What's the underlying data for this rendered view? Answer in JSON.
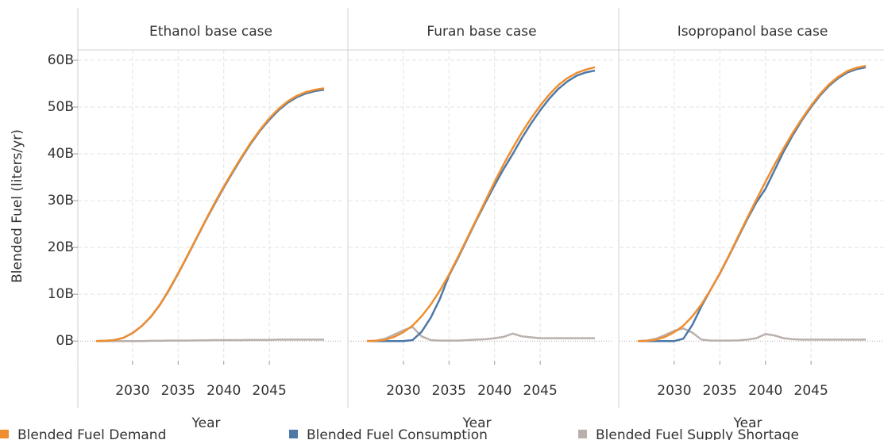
{
  "chart_data": {
    "type": "line",
    "ylabel": "Blended Fuel (liters/yr)",
    "xlabel": "Year",
    "x": [
      2026,
      2027,
      2028,
      2029,
      2030,
      2031,
      2032,
      2033,
      2034,
      2035,
      2036,
      2037,
      2038,
      2039,
      2040,
      2041,
      2042,
      2043,
      2044,
      2045,
      2046,
      2047,
      2048,
      2049,
      2050,
      2051
    ],
    "xlim": [
      2024,
      2053
    ],
    "xticks": [
      2030,
      2035,
      2040,
      2045
    ],
    "ylim": [
      -4200000000.0,
      62200000000.0
    ],
    "yticks": [
      {
        "value": 0,
        "label": "0B"
      },
      {
        "value": 10000000000.0,
        "label": "10B"
      },
      {
        "value": 20000000000.0,
        "label": "20B"
      },
      {
        "value": 30000000000.0,
        "label": "30B"
      },
      {
        "value": 40000000000.0,
        "label": "40B"
      },
      {
        "value": 50000000000.0,
        "label": "50B"
      },
      {
        "value": 60000000000.0,
        "label": "60B"
      }
    ],
    "grid": true,
    "legend": "bottom",
    "series": [
      {
        "name": "Blended Fuel Demand",
        "color": "#ef8e2f"
      },
      {
        "name": "Blended Fuel Consumption",
        "color": "#4e79a7"
      },
      {
        "name": "Blended Fuel Supply Shortage",
        "color": "#bab0ac"
      }
    ],
    "panels": [
      {
        "title": "Ethanol base case",
        "series": [
          {
            "values": [
              0,
              50000000.0,
              200000000.0,
              700000000.0,
              1700000000.0,
              3200000000.0,
              5200000000.0,
              7800000000.0,
              11000000000.0,
              14500000000.0,
              18200000000.0,
              22000000000.0,
              25800000000.0,
              29500000000.0,
              33000000000.0,
              36300000000.0,
              39500000000.0,
              42500000000.0,
              45200000000.0,
              47600000000.0,
              49600000000.0,
              51200000000.0,
              52400000000.0,
              53200000000.0,
              53700000000.0,
              54000000000.0
            ]
          },
          {
            "values": [
              0,
              50000000.0,
              200000000.0,
              700000000.0,
              1700000000.0,
              3200000000.0,
              5150000000.0,
              7750000000.0,
              10900000000.0,
              14400000000.0,
              18100000000.0,
              21900000000.0,
              25700000000.0,
              29300000000.0,
              32800000000.0,
              36100000000.0,
              39300000000.0,
              42300000000.0,
              45000000000.0,
              47300000000.0,
              49300000000.0,
              50900000000.0,
              52100000000.0,
              52900000000.0,
              53400000000.0,
              53700000000.0
            ]
          },
          {
            "values": [
              0,
              0,
              0,
              0,
              0,
              0,
              50000000.0,
              50000000.0,
              100000000.0,
              100000000.0,
              100000000.0,
              150000000.0,
              150000000.0,
              200000000.0,
              200000000.0,
              200000000.0,
              200000000.0,
              250000000.0,
              250000000.0,
              250000000.0,
              300000000.0,
              300000000.0,
              300000000.0,
              300000000.0,
              300000000.0,
              300000000.0
            ]
          }
        ]
      },
      {
        "title": "Furan base case",
        "series": [
          {
            "values": [
              0,
              50000000.0,
              300000000.0,
              900000000.0,
              1900000000.0,
              3300000000.0,
              5300000000.0,
              7800000000.0,
              10800000000.0,
              14200000000.0,
              18000000000.0,
              22000000000.0,
              26000000000.0,
              30000000000.0,
              34000000000.0,
              37800000000.0,
              41300000000.0,
              44600000000.0,
              47600000000.0,
              50300000000.0,
              52700000000.0,
              54700000000.0,
              56200000000.0,
              57300000000.0,
              58000000000.0,
              58500000000.0
            ]
          },
          {
            "values": [
              0,
              0,
              0,
              0,
              0,
              200000000.0,
              2000000000.0,
              5000000000.0,
              9000000000.0,
              14000000000.0,
              17800000000.0,
              21800000000.0,
              25800000000.0,
              29600000000.0,
              33300000000.0,
              36800000000.0,
              40000000000.0,
              43400000000.0,
              46500000000.0,
              49300000000.0,
              51800000000.0,
              53900000000.0,
              55500000000.0,
              56700000000.0,
              57400000000.0,
              57800000000.0
            ]
          },
          {
            "values": [
              0,
              100000000.0,
              500000000.0,
              1400000000.0,
              2300000000.0,
              3000000000.0,
              1000000000.0,
              200000000.0,
              100000000.0,
              100000000.0,
              100000000.0,
              200000000.0,
              300000000.0,
              400000000.0,
              600000000.0,
              900000000.0,
              1600000000.0,
              1000000000.0,
              800000000.0,
              600000000.0,
              600000000.0,
              600000000.0,
              600000000.0,
              600000000.0,
              600000000.0,
              600000000.0
            ]
          }
        ]
      },
      {
        "title": "Isopropanol base case",
        "series": [
          {
            "values": [
              0,
              50000000.0,
              300000000.0,
              900000000.0,
              1900000000.0,
              3300000000.0,
              5300000000.0,
              7900000000.0,
              11000000000.0,
              14500000000.0,
              18300000000.0,
              22300000000.0,
              26300000000.0,
              30200000000.0,
              34000000000.0,
              37700000000.0,
              41200000000.0,
              44500000000.0,
              47500000000.0,
              50300000000.0,
              52800000000.0,
              54900000000.0,
              56500000000.0,
              57700000000.0,
              58400000000.0,
              58800000000.0
            ]
          },
          {
            "values": [
              0,
              0,
              0,
              0,
              0,
              500000000.0,
              3500000000.0,
              7500000000.0,
              11000000000.0,
              14400000000.0,
              18200000000.0,
              22100000000.0,
              26000000000.0,
              29600000000.0,
              32500000000.0,
              36500000000.0,
              40500000000.0,
              44000000000.0,
              47200000000.0,
              50000000000.0,
              52500000000.0,
              54600000000.0,
              56200000000.0,
              57400000000.0,
              58100000000.0,
              58500000000.0
            ]
          },
          {
            "values": [
              0,
              100000000.0,
              500000000.0,
              1300000000.0,
              2200000000.0,
              2700000000.0,
              1800000000.0,
              300000000.0,
              100000000.0,
              100000000.0,
              100000000.0,
              150000000.0,
              300000000.0,
              600000000.0,
              1500000000.0,
              1200000000.0,
              600000000.0,
              400000000.0,
              300000000.0,
              300000000.0,
              300000000.0,
              300000000.0,
              300000000.0,
              300000000.0,
              300000000.0,
              300000000.0
            ]
          }
        ]
      }
    ]
  }
}
